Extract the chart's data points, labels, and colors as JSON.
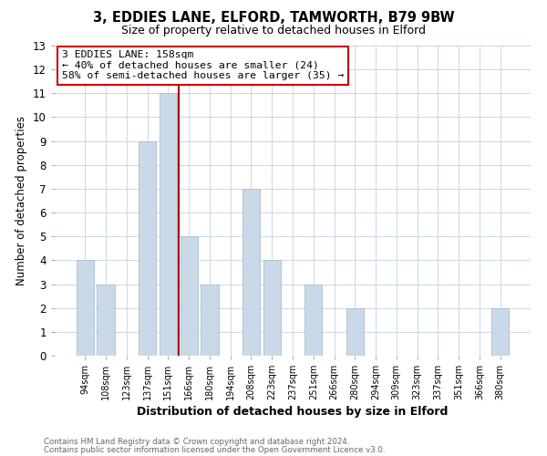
{
  "title_line1": "3, EDDIES LANE, ELFORD, TAMWORTH, B79 9BW",
  "title_line2": "Size of property relative to detached houses in Elford",
  "xlabel": "Distribution of detached houses by size in Elford",
  "ylabel": "Number of detached properties",
  "footer_line1": "Contains HM Land Registry data © Crown copyright and database right 2024.",
  "footer_line2": "Contains public sector information licensed under the Open Government Licence v3.0.",
  "bar_labels": [
    "94sqm",
    "108sqm",
    "123sqm",
    "137sqm",
    "151sqm",
    "166sqm",
    "180sqm",
    "194sqm",
    "208sqm",
    "223sqm",
    "237sqm",
    "251sqm",
    "266sqm",
    "280sqm",
    "294sqm",
    "309sqm",
    "323sqm",
    "337sqm",
    "351sqm",
    "366sqm",
    "380sqm"
  ],
  "bar_values": [
    4,
    3,
    0,
    9,
    11,
    5,
    3,
    0,
    7,
    4,
    0,
    3,
    0,
    2,
    0,
    0,
    0,
    0,
    0,
    0,
    2
  ],
  "bar_color": "#c9d9e8",
  "bar_edgecolor": "#a8bfd0",
  "ylim": [
    0,
    13
  ],
  "yticks": [
    0,
    1,
    2,
    3,
    4,
    5,
    6,
    7,
    8,
    9,
    10,
    11,
    12,
    13
  ],
  "reference_line_x": 4.5,
  "reference_line_color": "#aa0000",
  "annotation_title": "3 EDDIES LANE: 158sqm",
  "annotation_line2": "← 40% of detached houses are smaller (24)",
  "annotation_line3": "58% of semi-detached houses are larger (35) →",
  "annotation_box_color": "#ffffff",
  "annotation_box_edgecolor": "#cc0000",
  "background_color": "#ffffff",
  "grid_color": "#c8d8e8"
}
